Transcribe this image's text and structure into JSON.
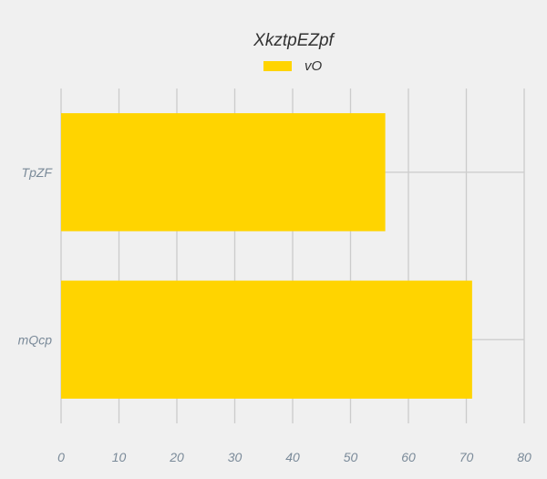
{
  "chart_data": {
    "type": "bar",
    "orientation": "horizontal",
    "title": "XkztpEZpf",
    "categories": [
      "TpZF",
      "mQcp"
    ],
    "series": [
      {
        "name": "vO",
        "values": [
          56,
          71
        ],
        "color": "#ffd400"
      }
    ],
    "xlim": [
      0,
      80
    ],
    "xticks": [
      "0",
      "10",
      "20",
      "30",
      "40",
      "50",
      "60",
      "70",
      "80"
    ],
    "grid": true,
    "legend_position": "top-center"
  }
}
